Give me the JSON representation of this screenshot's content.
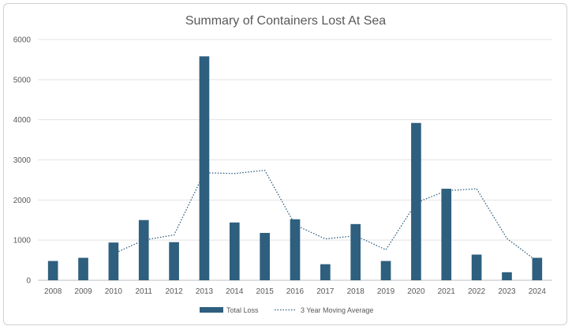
{
  "chart_data": {
    "type": "bar",
    "title": "Summary of Containers Lost At Sea",
    "categories": [
      "2008",
      "2009",
      "2010",
      "2011",
      "2012",
      "2013",
      "2014",
      "2015",
      "2016",
      "2017",
      "2018",
      "2019",
      "2020",
      "2021",
      "2022",
      "2023",
      "2024"
    ],
    "ylim": [
      0,
      6000
    ],
    "yticks": [
      "0",
      "1000",
      "2000",
      "3000",
      "4000",
      "5000",
      "6000"
    ],
    "grid": true,
    "legend_position": "bottom",
    "series": [
      {
        "name": "Total Loss",
        "type": "bar",
        "color": "#2e5f7e",
        "values": [
          480,
          560,
          940,
          1500,
          950,
          5580,
          1440,
          1180,
          1520,
          400,
          1400,
          480,
          3920,
          2280,
          640,
          200,
          560
        ]
      },
      {
        "name": "3 Year Moving Average",
        "type": "line",
        "style": "dotted",
        "color": "#2e5f7e",
        "values": [
          null,
          null,
          660,
          1000,
          1130,
          2680,
          2660,
          2740,
          1380,
          1030,
          1110,
          760,
          1930,
          2230,
          2280,
          1040,
          470
        ]
      }
    ]
  }
}
